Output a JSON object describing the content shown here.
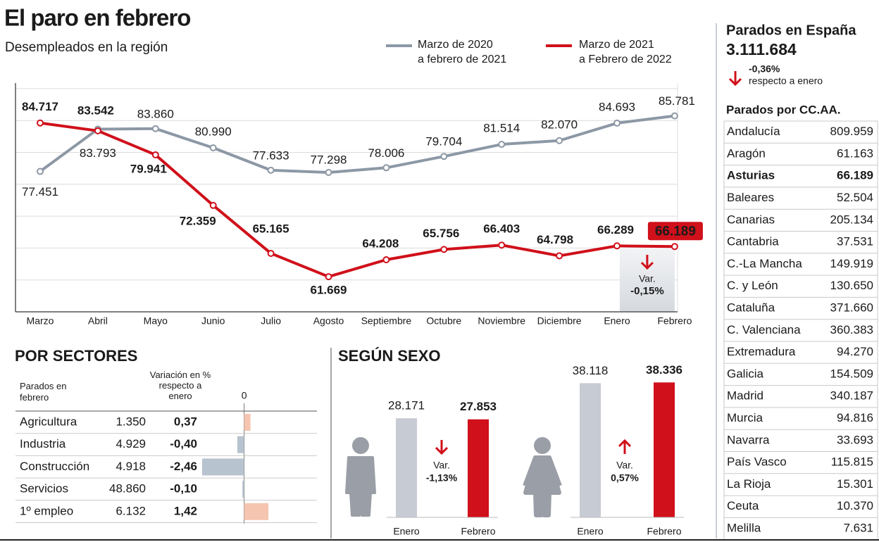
{
  "header": {
    "title": "El paro en febrero",
    "subtitle": "Desempleados en la región"
  },
  "chart_data": [
    {
      "type": "line",
      "categories": [
        "Marzo",
        "Abril",
        "Mayo",
        "Junio",
        "Julio",
        "Agosto",
        "Septiembre",
        "Octubre",
        "Noviembre",
        "Diciembre",
        "Enero",
        "Febrero"
      ],
      "series": [
        {
          "name": "Marzo de 2020\na febrero de 2021",
          "color": "#8c98a5",
          "values": [
            77451,
            83793,
            83860,
            80990,
            77633,
            77298,
            78006,
            79704,
            81514,
            82070,
            84693,
            85781
          ],
          "value_labels": [
            "77.451",
            "83.793",
            "83.860",
            "80.990",
            "77.633",
            "77.298",
            "78.006",
            "79.704",
            "81.514",
            "82.070",
            "84.693",
            "85.781"
          ]
        },
        {
          "name": "Marzo de 2021\na Febrero de 2022",
          "color": "#d0101a",
          "values": [
            84717,
            83542,
            79941,
            72359,
            65165,
            61669,
            64208,
            65756,
            66403,
            64798,
            66289,
            66189
          ],
          "value_labels": [
            "84.717",
            "83.542",
            "79.941",
            "72.359",
            "65.165",
            "61.669",
            "64.208",
            "65.756",
            "66.403",
            "64.798",
            "66.289",
            "66.189"
          ]
        }
      ],
      "ylim": [
        56400,
        90700
      ],
      "grid": true,
      "annotation": {
        "title": "Var.",
        "text": "-0,15%"
      }
    },
    {
      "type": "hbar",
      "title": "POR SECTORES",
      "categories": [
        "Agricultura",
        "Industria",
        "Construcción",
        "Servicios",
        "1º empleo"
      ],
      "series": [
        {
          "name": "Parados en\nfebrero",
          "values": [
            1350,
            4929,
            4918,
            48860,
            6132
          ],
          "value_labels": [
            "1.350",
            "4.929",
            "4.918",
            "48.860",
            "6.132"
          ]
        },
        {
          "name": "Variación en %\nrespecto a\nenero",
          "values": [
            0.37,
            -0.4,
            -2.46,
            -0.1,
            1.42
          ],
          "value_labels": [
            "0,37",
            "-0,40",
            "-2,46",
            "-0,10",
            "1,42"
          ]
        }
      ],
      "xlim": [
        -2.5,
        1.5
      ],
      "xticks": [
        0
      ],
      "colors": {
        "positive": "#f6c5b0",
        "negative": "#b7c3cf"
      }
    },
    {
      "type": "grouped_bar",
      "title": "SEGÚN SEXO",
      "categories": [
        "Enero",
        "Febrero"
      ],
      "colors": [
        "#c7cbd3",
        "#d0101a"
      ],
      "ylim": [
        0,
        40000
      ],
      "groups": [
        {
          "values": [
            28171,
            27853
          ],
          "value_labels": [
            "28.171",
            "27.853"
          ],
          "variation_title": "Var.",
          "variation": "-1,13%",
          "direction": "down"
        },
        {
          "values": [
            38118,
            38336
          ],
          "value_labels": [
            "38.118",
            "38.336"
          ],
          "variation_title": "Var.",
          "variation": "0,57%",
          "direction": "up"
        }
      ]
    }
  ],
  "spain": {
    "title": "Parados en España",
    "total": "3.111.684",
    "variation": "-0,36%",
    "variation_note": "respecto a enero",
    "table_title": "Parados por CC.AA.",
    "highlight": "Asturias",
    "rows": [
      [
        "Andalucía",
        "809.959"
      ],
      [
        "Aragón",
        "61.163"
      ],
      [
        "Asturias",
        "66.189"
      ],
      [
        "Baleares",
        "52.504"
      ],
      [
        "Canarias",
        "205.134"
      ],
      [
        "Cantabria",
        "37.531"
      ],
      [
        "C.-La Mancha",
        "149.919"
      ],
      [
        "C. y León",
        "130.650"
      ],
      [
        "Cataluña",
        "371.660"
      ],
      [
        "C. Valenciana",
        "360.383"
      ],
      [
        "Extremadura",
        "94.270"
      ],
      [
        "Galicia",
        "154.509"
      ],
      [
        "Madrid",
        "340.187"
      ],
      [
        "Murcia",
        "94.816"
      ],
      [
        "Navarra",
        "33.693"
      ],
      [
        "País Vasco",
        "115.815"
      ],
      [
        "La Rioja",
        "15.301"
      ],
      [
        "Ceuta",
        "10.370"
      ],
      [
        "Melilla",
        "7.631"
      ]
    ]
  }
}
